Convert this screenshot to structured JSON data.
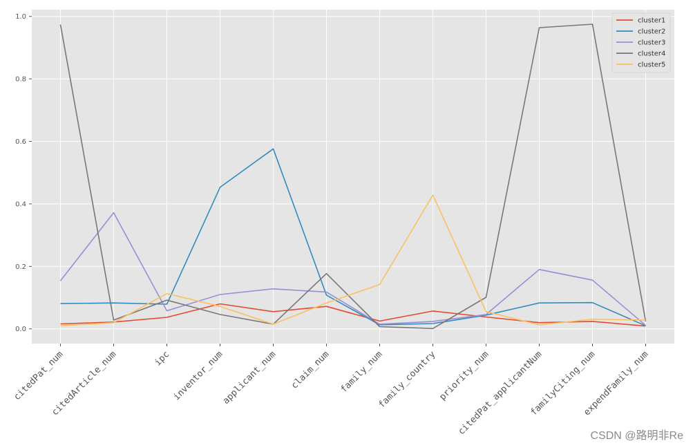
{
  "chart_data": {
    "type": "line",
    "title": "",
    "xlabel": "",
    "ylabel": "",
    "ylim": [
      -0.05,
      1.02
    ],
    "grid": true,
    "legend_position": "upper right",
    "yticks": [
      0.0,
      0.2,
      0.4,
      0.6,
      0.8,
      1.0
    ],
    "ytick_labels": [
      "0.0",
      "0.2",
      "0.4",
      "0.6",
      "0.8",
      "1.0"
    ],
    "categories": [
      "citedPat_num",
      "citedArticle_num",
      "ipc",
      "inventor_num",
      "applicant_num",
      "claim_num",
      "family_num",
      "family_country",
      "priority_num",
      "citedPat_applicantNum",
      "familyCiting_num",
      "expendFamily_num"
    ],
    "series": [
      {
        "name": "cluster1",
        "color": "#E24A33",
        "values": [
          0.016,
          0.022,
          0.037,
          0.08,
          0.055,
          0.072,
          0.025,
          0.057,
          0.038,
          0.02,
          0.024,
          0.009
        ]
      },
      {
        "name": "cluster2",
        "color": "#348ABD",
        "values": [
          0.081,
          0.083,
          0.079,
          0.453,
          0.576,
          0.108,
          0.013,
          0.017,
          0.044,
          0.083,
          0.084,
          0.01
        ]
      },
      {
        "name": "cluster3",
        "color": "#988ED5",
        "values": [
          0.154,
          0.372,
          0.058,
          0.11,
          0.128,
          0.118,
          0.015,
          0.024,
          0.046,
          0.19,
          0.156,
          0.011
        ]
      },
      {
        "name": "cluster4",
        "color": "#777777",
        "values": [
          0.974,
          0.028,
          0.092,
          0.046,
          0.015,
          0.177,
          0.007,
          0.001,
          0.101,
          0.964,
          0.975,
          0.024
        ]
      },
      {
        "name": "cluster5",
        "color": "#FBC15E",
        "values": [
          0.01,
          0.02,
          0.113,
          0.072,
          0.015,
          0.083,
          0.142,
          0.428,
          0.055,
          0.013,
          0.031,
          0.028
        ]
      }
    ]
  },
  "watermark": "CSDN @路明非Re",
  "colors": {
    "plot_background": "#E5E5E5",
    "grid": "#FFFFFF",
    "tick": "#555555"
  }
}
